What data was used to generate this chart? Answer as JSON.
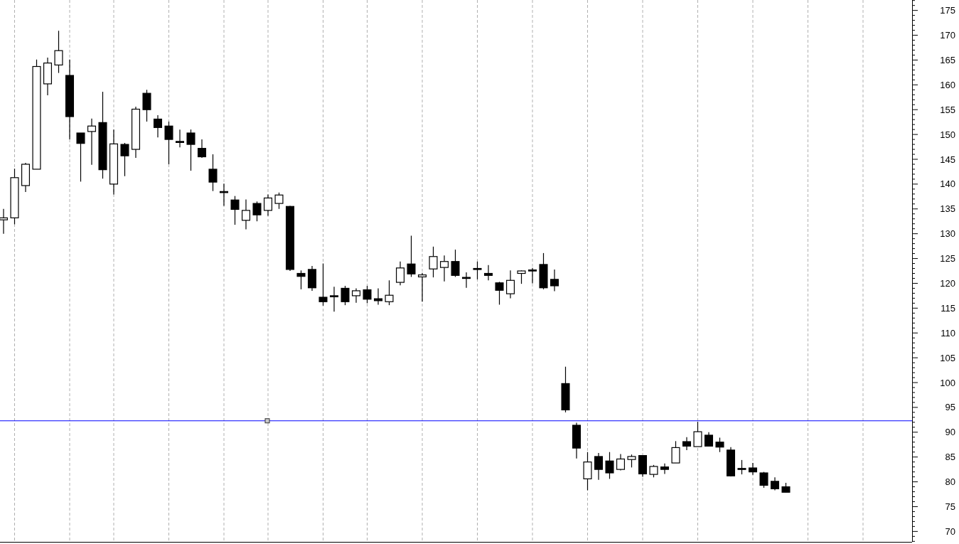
{
  "chart_data": {
    "type": "candlestick",
    "categories": [
      null,
      null,
      null,
      null,
      null,
      null,
      null,
      null,
      null,
      null,
      null,
      null,
      null,
      null,
      null,
      null,
      null,
      null,
      null,
      null,
      null,
      null,
      null,
      null,
      null,
      null,
      null,
      null,
      null,
      null,
      null,
      null,
      null,
      null,
      null,
      null,
      null,
      null,
      null,
      null,
      null,
      null,
      null,
      null,
      null,
      null,
      null,
      null,
      null,
      null,
      null,
      null,
      null,
      null,
      null,
      null,
      null,
      null,
      null,
      null,
      null,
      null,
      null,
      null,
      null,
      null,
      null,
      null,
      null,
      null,
      null,
      null,
      null,
      null,
      null,
      null,
      null,
      null,
      null,
      null,
      null,
      null,
      null,
      null
    ],
    "ohlc": [
      [
        132.8,
        135,
        130,
        133.2
      ],
      [
        133.2,
        143.1,
        131.9,
        141.3
      ],
      [
        139.7,
        144.3,
        138.4,
        144
      ],
      [
        143,
        165.1,
        143,
        163.7
      ],
      [
        160.2,
        165.5,
        157.9,
        164.4
      ],
      [
        164,
        170.9,
        162.4,
        166.9
      ],
      [
        161.9,
        165.1,
        149,
        153.6
      ],
      [
        150.3,
        150.3,
        140.5,
        148.2
      ],
      [
        150.6,
        153.2,
        143.9,
        151.7
      ],
      [
        152.4,
        158.6,
        141.1,
        142.9
      ],
      [
        140,
        151,
        137.9,
        148.1
      ],
      [
        148,
        148.3,
        141.6,
        145.7
      ],
      [
        147,
        155.6,
        145.3,
        155.1
      ],
      [
        158.3,
        159,
        152.6,
        155
      ],
      [
        153.1,
        153.9,
        149.4,
        151.4
      ],
      [
        151.7,
        152.6,
        144,
        149
      ],
      [
        148.6,
        151,
        147.4,
        148.5
      ],
      [
        150.3,
        151,
        142.7,
        148
      ],
      [
        147.2,
        149,
        145.3,
        145.5
      ],
      [
        143,
        146,
        138.6,
        140.4
      ],
      [
        138.5,
        140.1,
        135.6,
        138.4
      ],
      [
        136.8,
        137.6,
        131.8,
        134.9
      ],
      [
        132.7,
        136.9,
        130.9,
        134.7
      ],
      [
        136.1,
        136.5,
        132.5,
        133.8
      ],
      [
        134.7,
        137.9,
        133.6,
        137.2
      ],
      [
        136.1,
        138.3,
        135,
        137.8
      ],
      [
        135.5,
        135.6,
        122.5,
        122.8
      ],
      [
        122,
        122.6,
        118.8,
        121.4
      ],
      [
        122.8,
        123.5,
        118.5,
        119.1
      ],
      [
        117.2,
        124,
        115.5,
        116.3
      ],
      [
        117.5,
        119.3,
        114.3,
        117.4
      ],
      [
        119,
        119.5,
        115.6,
        116.3
      ],
      [
        117.5,
        119,
        116.1,
        118.5
      ],
      [
        118.7,
        119.5,
        116,
        116.8
      ],
      [
        116.9,
        119,
        115.7,
        116.5
      ],
      [
        116.3,
        120.6,
        115.6,
        117.6
      ],
      [
        120.2,
        124.4,
        119.6,
        123.1
      ],
      [
        123.9,
        129.6,
        121.3,
        121.9
      ],
      [
        121.3,
        122.1,
        116.3,
        121.7
      ],
      [
        122.9,
        127.4,
        121.2,
        125.4
      ],
      [
        123.2,
        125.6,
        120.4,
        124.4
      ],
      [
        124.4,
        126.8,
        121.3,
        121.6
      ],
      [
        121.2,
        122.2,
        119.1,
        121.1
      ],
      [
        123,
        124.4,
        120.8,
        122.9
      ],
      [
        122,
        123.7,
        120.6,
        121.6
      ],
      [
        120.1,
        120.3,
        115.7,
        118.6
      ],
      [
        117.9,
        122.6,
        117,
        120.6
      ],
      [
        122,
        122.6,
        119.9,
        122.5
      ],
      [
        122.7,
        123.1,
        120,
        122.6
      ],
      [
        123.8,
        126.1,
        118.8,
        119.1
      ],
      [
        120.8,
        122.8,
        118.4,
        119.5
      ],
      [
        99.8,
        103.2,
        94,
        94.5
      ],
      [
        91.4,
        91.9,
        84.7,
        86.8
      ],
      [
        80.6,
        86,
        78.3,
        84
      ],
      [
        85.1,
        85.8,
        80.4,
        82.5
      ],
      [
        84.2,
        86,
        80.6,
        81.8
      ],
      [
        82.5,
        85.6,
        82.3,
        84.6
      ],
      [
        84.5,
        85.5,
        82.9,
        85.1
      ],
      [
        85.3,
        85.3,
        81,
        81.6
      ],
      [
        81.5,
        83.4,
        80.9,
        83.1
      ],
      [
        83,
        83.7,
        81.6,
        82.5
      ],
      [
        83.8,
        88.2,
        83.8,
        86.9
      ],
      [
        88.1,
        89,
        86.4,
        87.2
      ],
      [
        87.1,
        92.1,
        87.1,
        90.1
      ],
      [
        89.4,
        90,
        87.2,
        87.2
      ],
      [
        88,
        88.9,
        86,
        87
      ],
      [
        86.4,
        87,
        81.1,
        81.2
      ],
      [
        82.7,
        84.4,
        81.5,
        82.6
      ],
      [
        82.8,
        83.8,
        81.4,
        82
      ],
      [
        81.8,
        82,
        78.8,
        79.3
      ],
      [
        80.1,
        80.9,
        78.3,
        78.6
      ],
      [
        79,
        79.8,
        77.9,
        77.9
      ],
      null,
      null,
      null,
      null,
      null,
      null,
      null,
      null,
      null,
      null,
      null,
      null
    ],
    "ylim": [
      67.9,
      177.1
    ],
    "yticks": [
      {
        "value": 68,
        "label": null
      },
      {
        "value": 69,
        "label": null
      },
      70,
      {
        "value": 71,
        "label": null
      },
      {
        "value": 72,
        "label": null
      },
      {
        "value": 73,
        "label": null
      },
      {
        "value": 74,
        "label": null
      },
      75,
      {
        "value": 76,
        "label": null
      },
      {
        "value": 77,
        "label": null
      },
      {
        "value": 78,
        "label": null
      },
      {
        "value": 79,
        "label": null
      },
      80,
      {
        "value": 81,
        "label": null
      },
      {
        "value": 82,
        "label": null
      },
      {
        "value": 83,
        "label": null
      },
      {
        "value": 84,
        "label": null
      },
      85,
      {
        "value": 86,
        "label": null
      },
      {
        "value": 87,
        "label": null
      },
      {
        "value": 88,
        "label": null
      },
      {
        "value": 89,
        "label": null
      },
      90,
      {
        "value": 91,
        "label": null
      },
      {
        "value": 92,
        "label": null
      },
      {
        "value": 93,
        "label": null
      },
      {
        "value": 94,
        "label": null
      },
      95,
      {
        "value": 96,
        "label": null
      },
      {
        "value": 97,
        "label": null
      },
      {
        "value": 98,
        "label": null
      },
      {
        "value": 99,
        "label": null
      },
      100,
      {
        "value": 101,
        "label": null
      },
      {
        "value": 102,
        "label": null
      },
      {
        "value": 103,
        "label": null
      },
      {
        "value": 104,
        "label": null
      },
      105,
      {
        "value": 106,
        "label": null
      },
      {
        "value": 107,
        "label": null
      },
      {
        "value": 108,
        "label": null
      },
      {
        "value": 109,
        "label": null
      },
      110,
      {
        "value": 111,
        "label": null
      },
      {
        "value": 112,
        "label": null
      },
      {
        "value": 113,
        "label": null
      },
      {
        "value": 114,
        "label": null
      },
      115,
      {
        "value": 116,
        "label": null
      },
      {
        "value": 117,
        "label": null
      },
      {
        "value": 118,
        "label": null
      },
      {
        "value": 119,
        "label": null
      },
      120,
      {
        "value": 121,
        "label": null
      },
      {
        "value": 122,
        "label": null
      },
      {
        "value": 123,
        "label": null
      },
      {
        "value": 124,
        "label": null
      },
      125,
      {
        "value": 126,
        "label": null
      },
      {
        "value": 127,
        "label": null
      },
      {
        "value": 128,
        "label": null
      },
      {
        "value": 129,
        "label": null
      },
      130,
      {
        "value": 131,
        "label": null
      },
      {
        "value": 132,
        "label": null
      },
      {
        "value": 133,
        "label": null
      },
      {
        "value": 134,
        "label": null
      },
      135,
      {
        "value": 136,
        "label": null
      },
      {
        "value": 137,
        "label": null
      },
      {
        "value": 138,
        "label": null
      },
      {
        "value": 139,
        "label": null
      },
      140,
      {
        "value": 141,
        "label": null
      },
      {
        "value": 142,
        "label": null
      },
      {
        "value": 143,
        "label": null
      },
      {
        "value": 144,
        "label": null
      },
      145,
      {
        "value": 146,
        "label": null
      },
      {
        "value": 147,
        "label": null
      },
      {
        "value": 148,
        "label": null
      },
      {
        "value": 149,
        "label": null
      },
      150,
      {
        "value": 151,
        "label": null
      },
      {
        "value": 152,
        "label": null
      },
      {
        "value": 153,
        "label": null
      },
      {
        "value": 154,
        "label": null
      },
      155,
      {
        "value": 156,
        "label": null
      },
      {
        "value": 157,
        "label": null
      },
      {
        "value": 158,
        "label": null
      },
      {
        "value": 159,
        "label": null
      },
      160,
      {
        "value": 161,
        "label": null
      },
      {
        "value": 162,
        "label": null
      },
      {
        "value": 163,
        "label": null
      },
      {
        "value": 164,
        "label": null
      },
      165,
      {
        "value": 166,
        "label": null
      },
      {
        "value": 167,
        "label": null
      },
      {
        "value": 168,
        "label": null
      },
      {
        "value": 169,
        "label": null
      },
      170,
      {
        "value": 171,
        "label": null
      },
      {
        "value": 172,
        "label": null
      },
      {
        "value": 173,
        "label": null
      },
      {
        "value": 174,
        "label": null
      },
      175,
      {
        "value": 176,
        "label": null
      },
      {
        "value": 177,
        "label": null
      }
    ],
    "grid": "x",
    "ref_lines": [
      {
        "axis": "y",
        "value": 92.3,
        "color": "#0000ff"
      }
    ]
  }
}
